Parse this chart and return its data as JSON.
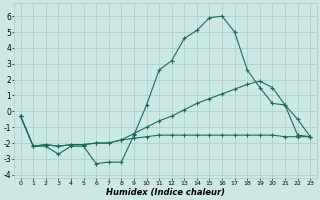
{
  "xlabel": "Humidex (Indice chaleur)",
  "bg_color": "#cce8e4",
  "grid_color": "#aaccca",
  "line_color": "#1a6b5e",
  "xlim": [
    -0.5,
    23.5
  ],
  "ylim": [
    -4.2,
    6.8
  ],
  "xticks": [
    0,
    1,
    2,
    3,
    4,
    5,
    6,
    7,
    8,
    9,
    10,
    11,
    12,
    13,
    14,
    15,
    16,
    17,
    18,
    19,
    20,
    21,
    22,
    23
  ],
  "yticks": [
    -4,
    -3,
    -2,
    -1,
    0,
    1,
    2,
    3,
    4,
    5,
    6
  ],
  "series1_x": [
    0,
    1,
    2,
    3,
    4,
    5,
    6,
    7,
    8,
    9,
    10,
    11,
    12,
    13,
    14,
    15,
    16,
    17,
    18,
    19,
    20,
    21,
    22,
    23
  ],
  "series1_y": [
    -0.3,
    -2.2,
    -2.2,
    -2.7,
    -2.2,
    -2.2,
    -3.3,
    -3.2,
    -3.2,
    -1.5,
    0.4,
    2.6,
    3.2,
    4.6,
    5.1,
    5.9,
    6.0,
    5.0,
    2.6,
    1.5,
    0.5,
    0.4,
    -0.5,
    -1.6
  ],
  "series2_x": [
    0,
    1,
    2,
    3,
    4,
    5,
    6,
    7,
    8,
    9,
    10,
    11,
    12,
    13,
    14,
    15,
    16,
    17,
    18,
    19,
    20,
    21,
    22,
    23
  ],
  "series2_y": [
    -0.3,
    -2.2,
    -2.1,
    -2.2,
    -2.1,
    -2.1,
    -2.0,
    -2.0,
    -1.8,
    -1.4,
    -1.0,
    -0.6,
    -0.3,
    0.1,
    0.5,
    0.8,
    1.1,
    1.4,
    1.7,
    1.9,
    1.5,
    0.4,
    -1.5,
    -1.6
  ],
  "series3_x": [
    0,
    1,
    2,
    3,
    4,
    5,
    6,
    7,
    8,
    9,
    10,
    11,
    12,
    13,
    14,
    15,
    16,
    17,
    18,
    19,
    20,
    21,
    22,
    23
  ],
  "series3_y": [
    -0.3,
    -2.2,
    -2.1,
    -2.2,
    -2.1,
    -2.1,
    -2.0,
    -2.0,
    -1.8,
    -1.7,
    -1.6,
    -1.5,
    -1.5,
    -1.5,
    -1.5,
    -1.5,
    -1.5,
    -1.5,
    -1.5,
    -1.5,
    -1.5,
    -1.6,
    -1.6,
    -1.6
  ]
}
